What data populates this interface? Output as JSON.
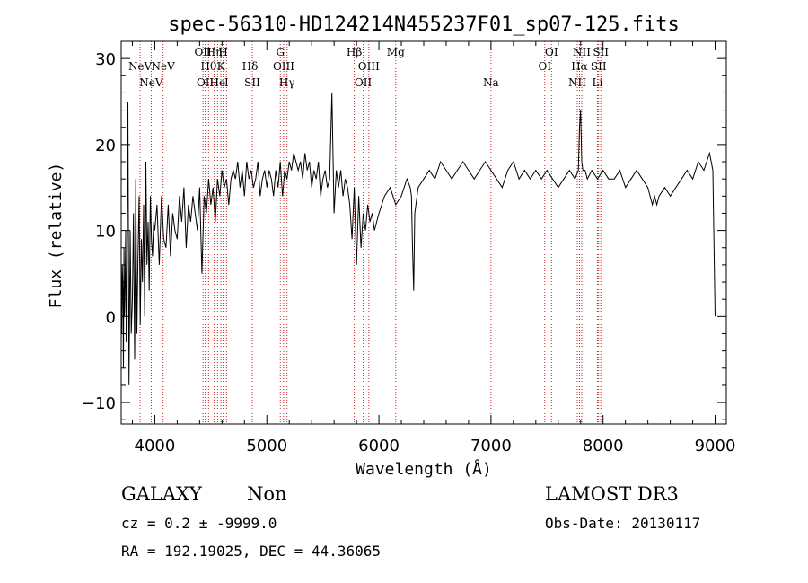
{
  "chart_data": {
    "type": "line",
    "title": "spec-56310-HD124214N455237F01_sp07-125.fits",
    "xlabel": "Wavelength (Å)",
    "ylabel": "Flux (relative)",
    "xlim": [
      3700,
      9100
    ],
    "ylim": [
      -12.5,
      32
    ],
    "xticks": [
      4000,
      5000,
      6000,
      7000,
      8000,
      9000
    ],
    "yticks": [
      -10,
      0,
      10,
      20,
      30
    ],
    "series": [
      {
        "name": "flux",
        "x": [
          3700,
          3705,
          3710,
          3715,
          3720,
          3725,
          3730,
          3735,
          3740,
          3745,
          3750,
          3760,
          3770,
          3780,
          3790,
          3800,
          3810,
          3820,
          3830,
          3840,
          3850,
          3860,
          3870,
          3880,
          3890,
          3900,
          3910,
          3920,
          3930,
          3940,
          3950,
          3960,
          3970,
          3980,
          3990,
          4000,
          4020,
          4040,
          4060,
          4080,
          4100,
          4120,
          4140,
          4160,
          4180,
          4200,
          4220,
          4240,
          4260,
          4280,
          4300,
          4320,
          4340,
          4360,
          4380,
          4400,
          4420,
          4440,
          4460,
          4480,
          4500,
          4520,
          4540,
          4560,
          4580,
          4600,
          4620,
          4640,
          4660,
          4680,
          4700,
          4720,
          4740,
          4760,
          4780,
          4800,
          4820,
          4840,
          4860,
          4880,
          4900,
          4920,
          4940,
          4960,
          4980,
          5000,
          5020,
          5040,
          5060,
          5080,
          5100,
          5120,
          5140,
          5160,
          5180,
          5200,
          5220,
          5240,
          5260,
          5280,
          5300,
          5320,
          5340,
          5360,
          5380,
          5400,
          5420,
          5440,
          5460,
          5480,
          5500,
          5520,
          5540,
          5560,
          5580,
          5600,
          5620,
          5640,
          5660,
          5680,
          5700,
          5720,
          5740,
          5760,
          5780,
          5800,
          5820,
          5840,
          5860,
          5880,
          5900,
          5920,
          5940,
          5960,
          5980,
          6000,
          6050,
          6100,
          6150,
          6200,
          6250,
          6280,
          6290,
          6300,
          6310,
          6320,
          6350,
          6400,
          6450,
          6500,
          6550,
          6600,
          6650,
          6700,
          6750,
          6800,
          6850,
          6900,
          6950,
          7000,
          7050,
          7100,
          7150,
          7200,
          7250,
          7300,
          7350,
          7400,
          7450,
          7500,
          7550,
          7600,
          7650,
          7700,
          7750,
          7780,
          7790,
          7800,
          7810,
          7820,
          7840,
          7860,
          7900,
          7950,
          8000,
          8050,
          8100,
          8150,
          8200,
          8250,
          8300,
          8350,
          8400,
          8420,
          8440,
          8460,
          8480,
          8500,
          8550,
          8600,
          8650,
          8700,
          8750,
          8800,
          8850,
          8900,
          8950,
          8980,
          9000
        ],
        "y": [
          5,
          -2,
          6,
          3,
          -6,
          8,
          0,
          4,
          10,
          -3,
          2,
          25,
          -8,
          10,
          -2,
          2,
          12,
          -5,
          16,
          -2,
          7,
          14,
          -1,
          9,
          4,
          13,
          0,
          18,
          6,
          11,
          3,
          14,
          9,
          7,
          11,
          10,
          13,
          6,
          14,
          9,
          8,
          13,
          7,
          12,
          10,
          9,
          14,
          11,
          15,
          8,
          13,
          11,
          14,
          12,
          10,
          15,
          5,
          14,
          12,
          16,
          13,
          15,
          11,
          16,
          14,
          17,
          15,
          16,
          13,
          16,
          17,
          16,
          18,
          15,
          17,
          14,
          18,
          16,
          17,
          15,
          16,
          18,
          14,
          16,
          17,
          15,
          17,
          16,
          14,
          17,
          15,
          18,
          14,
          17,
          16,
          18,
          17,
          19,
          18,
          17,
          18,
          16,
          19,
          17,
          18,
          15,
          17,
          16,
          18,
          14,
          16,
          17,
          15,
          16,
          26,
          12,
          17,
          15,
          17,
          14,
          16,
          15,
          13,
          9,
          15,
          6,
          14,
          8,
          12,
          10,
          13,
          11,
          12,
          10,
          11,
          12,
          14,
          15,
          13,
          14,
          16,
          15,
          14,
          8,
          3,
          12,
          15,
          16,
          17,
          16,
          18,
          17,
          16,
          17,
          18,
          17,
          16,
          17,
          18,
          17,
          16,
          15,
          17,
          18,
          16,
          17,
          16,
          17,
          16,
          17,
          16,
          15,
          16,
          17,
          16,
          17,
          22,
          24,
          18,
          17,
          17,
          16,
          17,
          16,
          17,
          16,
          16,
          17,
          15,
          16,
          17,
          16,
          15,
          14,
          13,
          14,
          13,
          14,
          15,
          14,
          15,
          16,
          17,
          16,
          18,
          17,
          19,
          17,
          0
        ]
      }
    ],
    "line_markers": [
      {
        "wave": 3869,
        "row": 2,
        "label": "NeV"
      },
      {
        "wave": 3968,
        "row": 3,
        "label": "NeV"
      },
      {
        "wave": 4074,
        "row": 2,
        "label": "NeV"
      },
      {
        "wave": 4430,
        "row": 1,
        "label": "OII"
      },
      {
        "wave": 4450,
        "row": 3,
        "label": "OII"
      },
      {
        "wave": 4480,
        "row": 2,
        "label": "Hθ"
      },
      {
        "wave": 4530,
        "row": 1,
        "label": "Hη"
      },
      {
        "wave": 4560,
        "row": 3,
        "label": "He"
      },
      {
        "wave": 4590,
        "row": 2,
        "label": "K"
      },
      {
        "wave": 4610,
        "row": 1,
        "label": "H"
      },
      {
        "wave": 4640,
        "row": 3,
        "label": "I"
      },
      {
        "wave": 4850,
        "row": 2,
        "label": "Hδ"
      },
      {
        "wave": 4870,
        "row": 3,
        "label": "SII"
      },
      {
        "wave": 5120,
        "row": 1,
        "label": "G"
      },
      {
        "wave": 5150,
        "row": 2,
        "label": "OIII"
      },
      {
        "wave": 5180,
        "row": 3,
        "label": "Hγ"
      },
      {
        "wave": 5780,
        "row": 1,
        "label": "Hβ"
      },
      {
        "wave": 5860,
        "row": 3,
        "label": "OII"
      },
      {
        "wave": 5910,
        "row": 2,
        "label": "OIII"
      },
      {
        "wave": 6150,
        "row": 1,
        "label": "Mg"
      },
      {
        "wave": 7000,
        "row": 3,
        "label": "Na"
      },
      {
        "wave": 7480,
        "row": 2,
        "label": "OI"
      },
      {
        "wave": 7540,
        "row": 1,
        "label": "OI"
      },
      {
        "wave": 7770,
        "row": 3,
        "label": "NII"
      },
      {
        "wave": 7790,
        "row": 2,
        "label": "Hα"
      },
      {
        "wave": 7810,
        "row": 1,
        "label": "NII"
      },
      {
        "wave": 7950,
        "row": 3,
        "label": "Li"
      },
      {
        "wave": 7960,
        "row": 2,
        "label": "SII"
      },
      {
        "wave": 7980,
        "row": 1,
        "label": "SII"
      }
    ]
  },
  "info": {
    "object_class": "GALAXY",
    "subclass": "Non",
    "survey": "LAMOST DR3",
    "redshift_line": "cz = 0.2 ± -9999.0",
    "obs_date": "Obs-Date: 20130117",
    "coords": "RA = 192.19025, DEC =  44.36065"
  },
  "colors": {
    "line": "#000000",
    "marker": "#cc2222",
    "background": "#ffffff"
  }
}
